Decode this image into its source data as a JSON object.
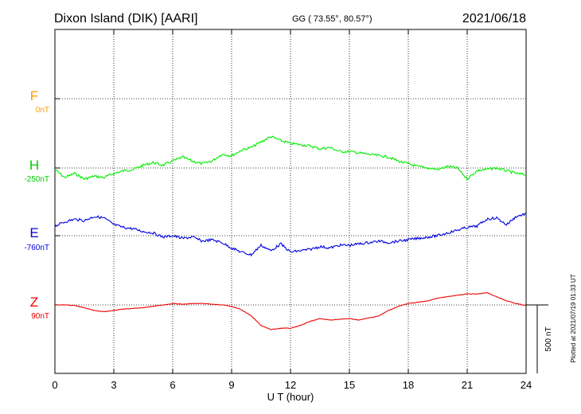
{
  "header": {
    "station": "Dixon Island (DIK)  [AARI]",
    "coords": "GG ( 73.55°,  80.57°)",
    "date": "2021/06/18"
  },
  "plotted_note": "Plotted at 2021/07/19 01:33 UT",
  "scale_label": "500 nT",
  "colors": {
    "F": "#ff9900",
    "H": "#00ee00",
    "E": "#0000dd",
    "Z": "#ee0000"
  },
  "chart_data": {
    "type": "line",
    "xlabel": "U T (hour)",
    "ylabel": "",
    "xlim": [
      0,
      24
    ],
    "x_ticks": [
      "0",
      "3",
      "6",
      "9",
      "12",
      "15",
      "18",
      "21",
      "24"
    ],
    "grid": true,
    "scale_bar_nT": 500,
    "components": [
      {
        "name": "F",
        "baseline": "0nT",
        "values": []
      },
      {
        "name": "H",
        "baseline": "-250nT",
        "x": [
          0,
          0.5,
          1,
          1.5,
          2,
          2.5,
          3,
          3.5,
          4,
          4.5,
          5,
          5.5,
          6,
          6.5,
          7,
          7.5,
          8,
          8.5,
          9,
          9.5,
          10,
          10.5,
          11,
          11.5,
          12,
          12.5,
          13,
          13.5,
          14,
          14.5,
          15,
          15.5,
          16,
          16.5,
          17,
          17.5,
          18,
          18.5,
          19,
          19.5,
          20,
          20.5,
          21,
          21.5,
          22,
          22.5,
          23,
          23.5,
          24
        ],
        "values": [
          -260,
          -320,
          -290,
          -330,
          -310,
          -320,
          -290,
          -270,
          -260,
          -230,
          -210,
          -230,
          -200,
          -170,
          -200,
          -220,
          -200,
          -150,
          -160,
          -120,
          -100,
          -60,
          -20,
          -50,
          -70,
          -80,
          -90,
          -110,
          -100,
          -130,
          -130,
          -140,
          -150,
          -160,
          -170,
          -200,
          -220,
          -240,
          -250,
          -260,
          -240,
          -250,
          -330,
          -270,
          -260,
          -250,
          -270,
          -290,
          -300
        ]
      },
      {
        "name": "E",
        "baseline": "-760nT",
        "x": [
          0,
          0.5,
          1,
          1.5,
          2,
          2.5,
          3,
          3.5,
          4,
          4.5,
          5,
          5.5,
          6,
          6.5,
          7,
          7.5,
          8,
          8.5,
          9,
          9.5,
          10,
          10.5,
          11,
          11.5,
          12,
          12.5,
          13,
          13.5,
          14,
          14.5,
          15,
          15.5,
          16,
          16.5,
          17,
          17.5,
          18,
          18.5,
          19,
          19.5,
          20,
          20.5,
          21,
          21.5,
          22,
          22.5,
          23,
          23.5,
          24
        ],
        "values": [
          -690,
          -660,
          -640,
          -650,
          -620,
          -630,
          -680,
          -700,
          -710,
          -730,
          -740,
          -770,
          -760,
          -780,
          -770,
          -800,
          -790,
          -810,
          -850,
          -880,
          -900,
          -830,
          -870,
          -820,
          -880,
          -870,
          -860,
          -840,
          -850,
          -830,
          -830,
          -820,
          -810,
          -800,
          -810,
          -800,
          -790,
          -780,
          -770,
          -760,
          -740,
          -720,
          -700,
          -690,
          -640,
          -630,
          -680,
          -620,
          -600
        ]
      },
      {
        "name": "Z",
        "baseline": "90nT",
        "x": [
          0,
          0.5,
          1,
          1.5,
          2,
          2.5,
          3,
          3.5,
          4,
          4.5,
          5,
          5.5,
          6,
          6.5,
          7,
          7.5,
          8,
          8.5,
          9,
          9.5,
          10,
          10.5,
          11,
          11.5,
          12,
          12.5,
          13,
          13.5,
          14,
          14.5,
          15,
          15.5,
          16,
          16.5,
          17,
          17.5,
          18,
          18.5,
          19,
          19.5,
          20,
          20.5,
          21,
          21.5,
          22,
          22.5,
          23,
          23.5,
          24
        ],
        "values": [
          90,
          90,
          85,
          70,
          50,
          40,
          50,
          60,
          65,
          70,
          80,
          90,
          100,
          95,
          100,
          100,
          95,
          90,
          80,
          55,
          10,
          -60,
          -90,
          -80,
          -80,
          -60,
          -30,
          -10,
          -20,
          -15,
          -10,
          -20,
          -5,
          10,
          50,
          80,
          100,
          110,
          120,
          140,
          150,
          160,
          170,
          170,
          180,
          150,
          120,
          100,
          85
        ]
      }
    ]
  }
}
